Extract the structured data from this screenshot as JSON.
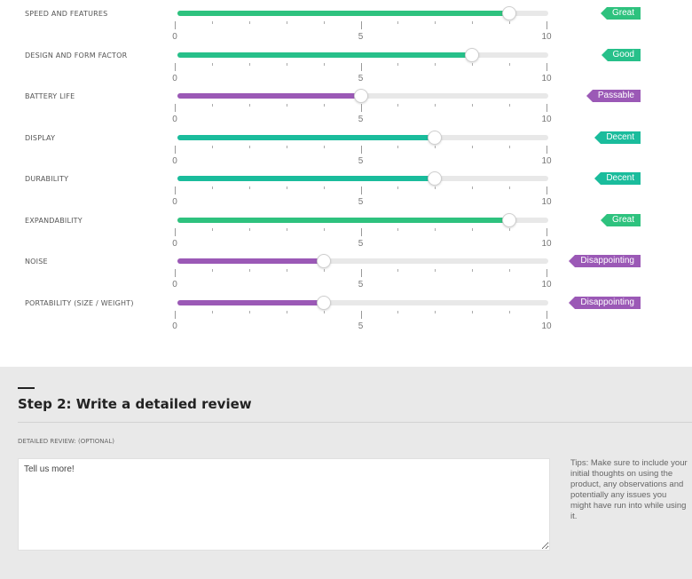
{
  "ratings": [
    {
      "label": "SPEED AND FEATURES",
      "value": 9,
      "verdict": "Great",
      "color": "#2ec27e"
    },
    {
      "label": "DESIGN AND FORM FACTOR",
      "value": 8,
      "verdict": "Good",
      "color": "#27c08a"
    },
    {
      "label": "BATTERY LIFE",
      "value": 5,
      "verdict": "Passable",
      "color": "#9b59b6"
    },
    {
      "label": "DISPLAY",
      "value": 7,
      "verdict": "Decent",
      "color": "#1abc9c"
    },
    {
      "label": "DURABILITY",
      "value": 7,
      "verdict": "Decent",
      "color": "#1abc9c"
    },
    {
      "label": "EXPANDABILITY",
      "value": 9,
      "verdict": "Great",
      "color": "#2ec27e"
    },
    {
      "label": "NOISE",
      "value": 4,
      "verdict": "Disappointing",
      "color": "#9b59b6"
    },
    {
      "label": "PORTABILITY (SIZE / WEIGHT)",
      "value": 4,
      "verdict": "Disappointing",
      "color": "#9b59b6"
    }
  ],
  "scale": {
    "min": 0,
    "mid": 5,
    "max": 10,
    "min_label": "0",
    "mid_label": "5",
    "max_label": "10"
  },
  "step2": {
    "title": "Step 2: Write a detailed review",
    "review_label": "DETAILED REVIEW: (OPTIONAL)",
    "placeholder": "Tell us more!",
    "tips": "Tips: Make sure to include your initial thoughts on using the product, any observations and potentially any issues you might have run into while using it."
  }
}
